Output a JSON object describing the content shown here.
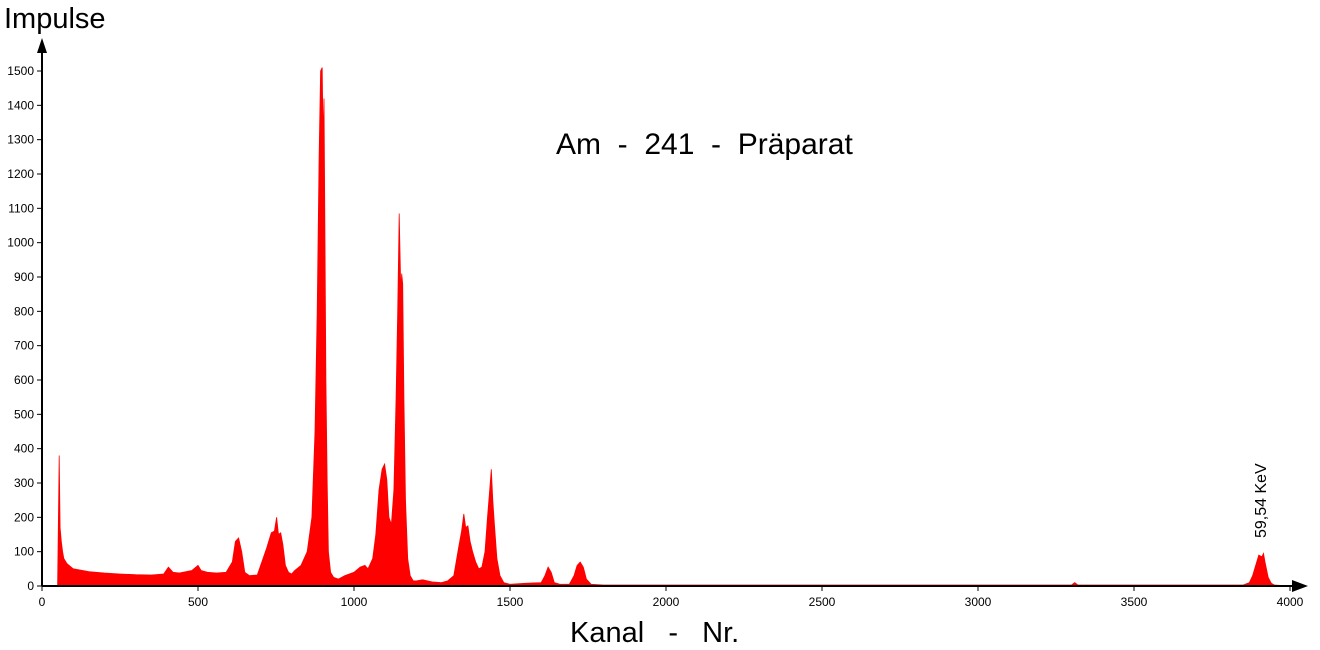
{
  "chart_data": {
    "type": "area",
    "title": "Am  -  241  -  Präparat",
    "xlabel": "Kanal   -   Nr.",
    "ylabel": "Impulse",
    "xlim": [
      0,
      4000
    ],
    "ylim": [
      0,
      1500
    ],
    "xticks": [
      0,
      500,
      1000,
      1500,
      2000,
      2500,
      3000,
      3500,
      4000
    ],
    "yticks": [
      0,
      100,
      200,
      300,
      400,
      500,
      600,
      700,
      800,
      900,
      1000,
      1100,
      1200,
      1300,
      1400,
      1500
    ],
    "grid": false,
    "color": "#ff0000",
    "annotations": [
      {
        "text": "59,54 KeV",
        "x": 3895,
        "y": 110
      }
    ],
    "series": [
      {
        "x": [
          50,
          55,
          58,
          62,
          66,
          70,
          80,
          100,
          150,
          200,
          250,
          300,
          350,
          390,
          405,
          420,
          440,
          480,
          500,
          510,
          530,
          560,
          590,
          610,
          620,
          630,
          640,
          650,
          665,
          690,
          720,
          735,
          745,
          752,
          758,
          765,
          772,
          780,
          790,
          800,
          810,
          830,
          850,
          865,
          875,
          882,
          888,
          893,
          898,
          901,
          904,
          907,
          910,
          914,
          918,
          925,
          935,
          950,
          970,
          1000,
          1020,
          1035,
          1045,
          1060,
          1070,
          1080,
          1090,
          1098,
          1105,
          1112,
          1120,
          1128,
          1135,
          1140,
          1145,
          1150,
          1153,
          1156,
          1160,
          1165,
          1172,
          1180,
          1190,
          1200,
          1220,
          1250,
          1280,
          1300,
          1320,
          1335,
          1345,
          1352,
          1358,
          1365,
          1372,
          1380,
          1390,
          1400,
          1410,
          1420,
          1428,
          1435,
          1440,
          1445,
          1450,
          1458,
          1468,
          1480,
          1500,
          1550,
          1600,
          1612,
          1622,
          1632,
          1642,
          1660,
          1690,
          1705,
          1715,
          1725,
          1735,
          1745,
          1760,
          1800,
          2000,
          2500,
          3000,
          3300,
          3310,
          3320,
          3500,
          3850,
          3870,
          3880,
          3890,
          3900,
          3910,
          3915,
          3920,
          3930,
          3940,
          3950,
          4000
        ],
        "y": [
          0,
          380,
          170,
          130,
          100,
          80,
          65,
          50,
          42,
          38,
          35,
          33,
          32,
          35,
          55,
          40,
          38,
          45,
          60,
          45,
          40,
          38,
          40,
          70,
          130,
          140,
          100,
          40,
          30,
          32,
          110,
          155,
          160,
          200,
          150,
          155,
          120,
          60,
          40,
          35,
          45,
          60,
          100,
          200,
          450,
          800,
          1250,
          1500,
          1510,
          1300,
          1420,
          1000,
          600,
          300,
          100,
          40,
          25,
          20,
          30,
          40,
          55,
          60,
          50,
          80,
          150,
          280,
          340,
          355,
          310,
          200,
          180,
          280,
          550,
          800,
          1085,
          860,
          910,
          880,
          550,
          250,
          80,
          30,
          15,
          15,
          18,
          12,
          10,
          15,
          30,
          110,
          160,
          210,
          170,
          175,
          130,
          100,
          70,
          50,
          55,
          100,
          200,
          280,
          340,
          250,
          180,
          80,
          30,
          10,
          5,
          8,
          10,
          30,
          55,
          40,
          10,
          5,
          5,
          30,
          60,
          70,
          55,
          20,
          5,
          3,
          3,
          3,
          3,
          3,
          10,
          3,
          3,
          3,
          10,
          30,
          60,
          90,
          85,
          95,
          70,
          25,
          8,
          3,
          0
        ]
      }
    ]
  }
}
